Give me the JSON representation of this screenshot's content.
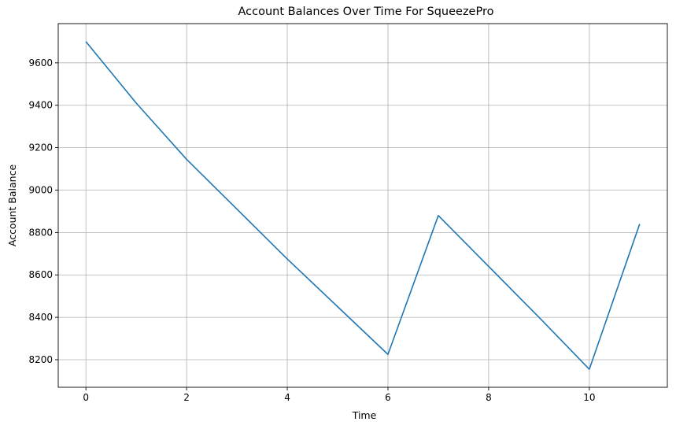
{
  "chart_data": {
    "type": "line",
    "title": "Account Balances Over Time For SqueezePro",
    "xlabel": "Time",
    "ylabel": "Account Balance",
    "x": [
      0,
      1,
      2,
      3,
      4,
      5,
      6,
      7,
      8,
      9,
      10,
      11
    ],
    "series": [
      {
        "values": [
          9700,
          9410,
          9145,
          8910,
          8675,
          8450,
          8225,
          8880,
          8640,
          8400,
          8155,
          8840
        ],
        "color": "#1f77b4"
      }
    ],
    "xlim": [
      -0.55,
      11.55
    ],
    "ylim": [
      8070,
      9785
    ],
    "xticks": [
      0,
      2,
      4,
      6,
      8,
      10
    ],
    "yticks": [
      8200,
      8400,
      8600,
      8800,
      9000,
      9200,
      9400,
      9600
    ],
    "grid": true
  }
}
